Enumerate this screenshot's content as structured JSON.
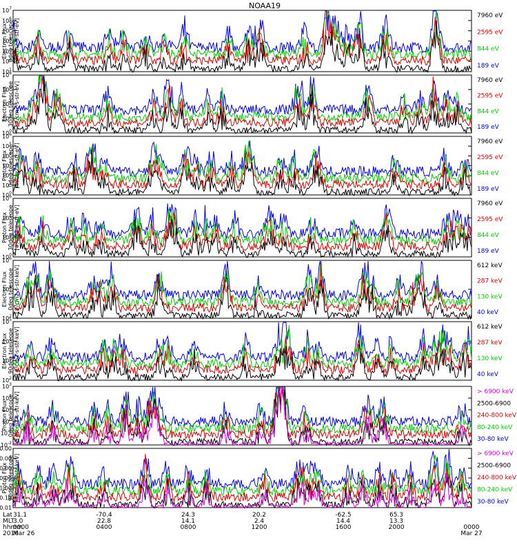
{
  "title": "NOAA19",
  "chart_data": {
    "type": "line",
    "x_axis": {
      "unit": "hours",
      "range": [
        0,
        24
      ],
      "tick_rows": [
        {
          "label": "Lat",
          "values": [
            "31.1",
            "-70.4",
            "24.3",
            "20.2",
            "-62.5",
            "65.3",
            ""
          ]
        },
        {
          "label": "MLT",
          "values": [
            "3.0",
            "22.8",
            "14.1",
            "2.4",
            "14.4",
            "13.3",
            ""
          ]
        },
        {
          "label": "hhmm",
          "values": [
            "0000",
            "0400",
            "0800",
            "1200",
            "1600",
            "2000",
            "0000"
          ]
        },
        {
          "label": "2016",
          "values": [
            "Mar 26",
            "",
            "",
            "",
            "",
            "",
            "Mar 27"
          ]
        }
      ]
    },
    "panels": [
      {
        "ylabel": [
          "TED",
          "Electron Flux",
          "0deg telescope",
          "[#/cm2-s-str-eV]"
        ],
        "yscale": "log",
        "ytick_labels": [
          "10^1",
          "10^2",
          "10^3",
          "10^4",
          "10^5",
          "10^6",
          "10^7"
        ],
        "series": [
          {
            "name": "7960 eV",
            "color": "#000000"
          },
          {
            "name": "2595 eV",
            "color": "#e00000"
          },
          {
            "name": "844 eV",
            "color": "#00d000"
          },
          {
            "name": "189 eV",
            "color": "#0000e0"
          }
        ]
      },
      {
        "ylabel": [
          "TED",
          "Electron Flux",
          "30deg telescope",
          "[#/cm2-s-str-eV]"
        ],
        "yscale": "log",
        "ytick_labels": [
          "10^0",
          "10^2",
          "10^4",
          "10^6",
          "10^8"
        ],
        "series": [
          {
            "name": "7960 eV",
            "color": "#000000"
          },
          {
            "name": "2595 eV",
            "color": "#e00000"
          },
          {
            "name": "844 eV",
            "color": "#00d000"
          },
          {
            "name": "189 eV",
            "color": "#0000e0"
          }
        ]
      },
      {
        "ylabel": [
          "TED",
          "Proton Flux",
          "0deg telescope",
          "[#/cm2-s-str-eV]"
        ],
        "yscale": "log",
        "ytick_labels": [
          "10^0",
          "10^1",
          "10^2",
          "10^3",
          "10^4",
          "10^5",
          "10^6"
        ],
        "series": [
          {
            "name": "7960 eV",
            "color": "#000000"
          },
          {
            "name": "2595 eV",
            "color": "#e00000"
          },
          {
            "name": "844 eV",
            "color": "#00d000"
          },
          {
            "name": "189 eV",
            "color": "#0000e0"
          }
        ]
      },
      {
        "ylabel": [
          "TED",
          "Proton Flux",
          "30deg telescope",
          "[#/cm2-s-str-eV]"
        ],
        "yscale": "log",
        "ytick_labels": [
          "10^0",
          "10^2",
          "10^4",
          "10^6"
        ],
        "series": [
          {
            "name": "7960 eV",
            "color": "#000000"
          },
          {
            "name": "2595 eV",
            "color": "#e00000"
          },
          {
            "name": "844 eV",
            "color": "#00d000"
          },
          {
            "name": "189 eV",
            "color": "#0000e0"
          }
        ]
      },
      {
        "ylabel": [
          "MEPED",
          "Electron Flux",
          "0deg telescope",
          "[#/cm2-s-str-keV]"
        ],
        "yscale": "log",
        "ytick_labels": [
          "10^2",
          "10^4",
          "10^6"
        ],
        "series": [
          {
            "name": "612 keV",
            "color": "#000000"
          },
          {
            "name": "287 keV",
            "color": "#e00000"
          },
          {
            "name": "130 keV",
            "color": "#00d000"
          },
          {
            "name": "40 keV",
            "color": "#0000e0"
          }
        ]
      },
      {
        "ylabel": [
          "MEPED",
          "Electron Flux",
          "90deg telescope",
          "[#/cm2-s-str-keV]"
        ],
        "yscale": "log",
        "ytick_labels": [
          "10^2",
          "10^3",
          "10^4",
          "10^5"
        ],
        "series": [
          {
            "name": "612 keV",
            "color": "#000000"
          },
          {
            "name": "287 keV",
            "color": "#e00000"
          },
          {
            "name": "130 keV",
            "color": "#00d000"
          },
          {
            "name": "40 keV",
            "color": "#0000e0"
          }
        ]
      },
      {
        "ylabel": [
          "MEPED",
          "Proton Flux",
          "0deg telescope",
          "[#/cm2-s-str-keV]"
        ],
        "yscale": "log",
        "ytick_labels": [
          "10^-2",
          "10^-1",
          "10^0",
          "10^1",
          "10^2",
          "10^3"
        ],
        "series": [
          {
            "name": "> 6900 keV",
            "color": "#e000e0"
          },
          {
            "name": "2500-6900",
            "color": "#000000"
          },
          {
            "name": "240-800 keV",
            "color": "#e00000"
          },
          {
            "name": "80-240 keV",
            "color": "#00d000"
          },
          {
            "name": "30-80 keV",
            "color": "#0000e0"
          }
        ]
      },
      {
        "ylabel": [
          "MEPED",
          "Proton Flux",
          "90deg telescope",
          "[#/cm2-s-str-keV]"
        ],
        "yscale": "log",
        "ytick_labels": [
          "0.01",
          "0.10",
          "1.00",
          "10.00",
          "100.00",
          "1000.00",
          "10000.00"
        ],
        "series": [
          {
            "name": "> 6900 keV",
            "color": "#e000e0"
          },
          {
            "name": "2500-6900",
            "color": "#000000"
          },
          {
            "name": "240-800 keV",
            "color": "#e00000"
          },
          {
            "name": "80-240 keV",
            "color": "#00d000"
          },
          {
            "name": "30-80 keV",
            "color": "#0000e0"
          }
        ]
      }
    ]
  }
}
